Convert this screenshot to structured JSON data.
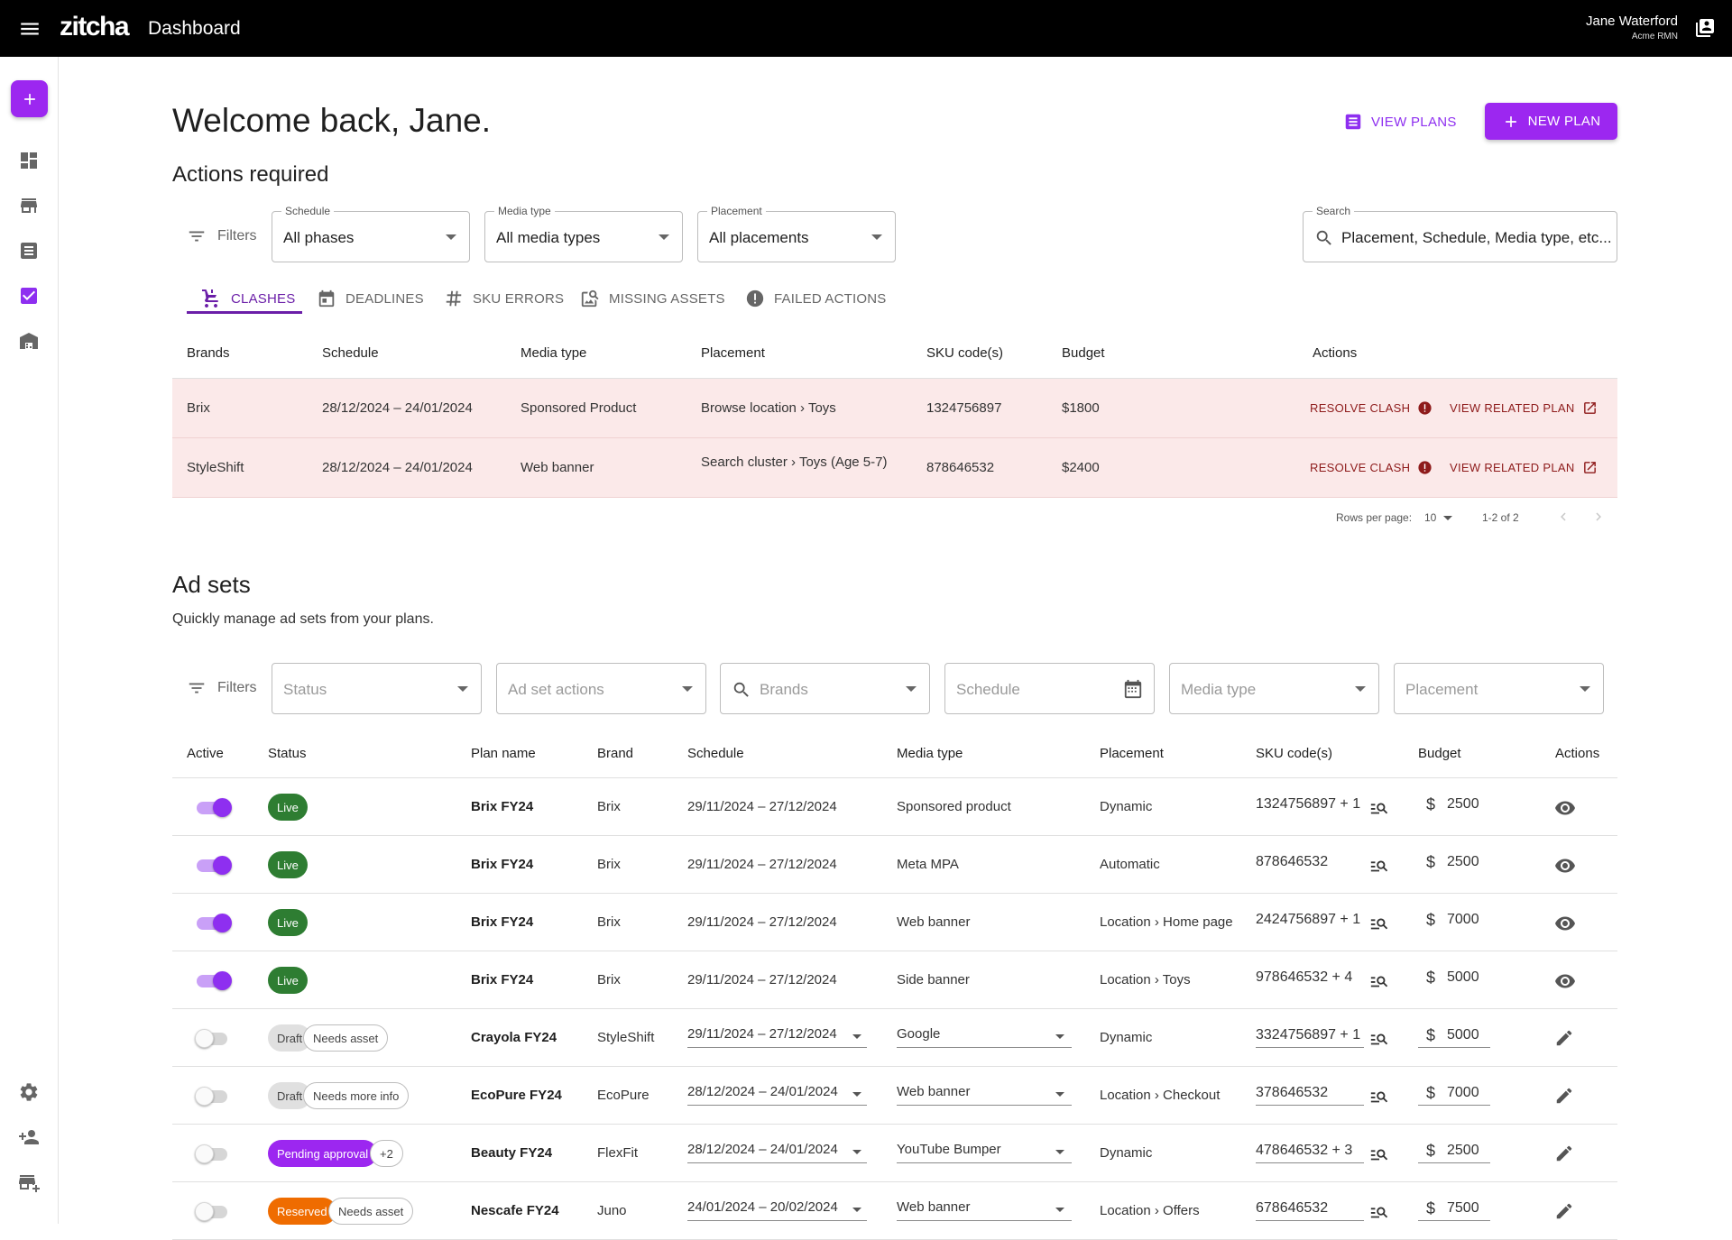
{
  "topbar": {
    "logo": "zitcha",
    "title": "Dashboard",
    "user_name": "Jane Waterford",
    "user_org": "Acme RMN"
  },
  "welcome": "Welcome back, Jane.",
  "header_actions": {
    "view_plans": "VIEW PLANS",
    "new_plan": "NEW PLAN"
  },
  "actions_required": {
    "title": "Actions required",
    "filters_label": "Filters",
    "schedule": {
      "label": "Schedule",
      "value": "All phases"
    },
    "media_type": {
      "label": "Media type",
      "value": "All media types"
    },
    "placement": {
      "label": "Placement",
      "value": "All placements"
    },
    "search": {
      "label": "Search",
      "placeholder": "Placement, Schedule, Media type, etc..."
    },
    "tabs": [
      "CLASHES",
      "DEADLINES",
      "SKU ERRORS",
      "MISSING ASSETS",
      "FAILED ACTIONS"
    ],
    "columns": [
      "Brands",
      "Schedule",
      "Media type",
      "Placement",
      "SKU code(s)",
      "Budget",
      "Actions"
    ],
    "rows": [
      {
        "brand": "Brix",
        "schedule": "28/12/2024 – 24/01/2024",
        "media_type": "Sponsored Product",
        "placement_a": "Browse location",
        "placement_b": "Toys",
        "sku": "1324756897",
        "budget": "$1800"
      },
      {
        "brand": "StyleShift",
        "schedule": "28/12/2024 – 24/01/2024",
        "media_type": "Web banner",
        "placement_a": "Search cluster",
        "placement_b": "Toys (Age 5-7)",
        "sku": "878646532",
        "budget": "$2400"
      }
    ],
    "resolve_label": "RESOLVE CLASH",
    "related_label": "VIEW RELATED PLAN",
    "rows_per_page_label": "Rows per page:",
    "rows_per_page": "10",
    "range": "1-2 of 2"
  },
  "ad_sets": {
    "title": "Ad sets",
    "subtitle": "Quickly manage ad sets from your plans.",
    "filters_label": "Filters",
    "filter_placeholders": {
      "status": "Status",
      "ad_set_actions": "Ad set actions",
      "brands": "Brands",
      "schedule": "Schedule",
      "media_type": "Media type",
      "placement": "Placement"
    },
    "columns": [
      "Active",
      "Status",
      "Plan name",
      "Brand",
      "Schedule",
      "Media type",
      "Placement",
      "SKU code(s)",
      "Budget",
      "Actions"
    ],
    "rows": [
      {
        "active": true,
        "status": "Live",
        "extra": "",
        "plan": "Brix FY24",
        "brand": "Brix",
        "schedule": "29/11/2024 – 27/12/2024",
        "media_type": "Sponsored product",
        "placement": "Dynamic",
        "sku": "1324756897 + 1",
        "currency": "$",
        "budget": "2500",
        "editable": false
      },
      {
        "active": true,
        "status": "Live",
        "extra": "",
        "plan": "Brix FY24",
        "brand": "Brix",
        "schedule": "29/11/2024 – 27/12/2024",
        "media_type": "Meta MPA",
        "placement": "Automatic",
        "sku": "878646532",
        "currency": "$",
        "budget": "2500",
        "editable": false
      },
      {
        "active": true,
        "status": "Live",
        "extra": "",
        "plan": "Brix FY24",
        "brand": "Brix",
        "schedule": "29/11/2024 – 27/12/2024",
        "media_type": "Web banner",
        "placement": "Location › Home page",
        "sku": "2424756897 + 1",
        "currency": "$",
        "budget": "7000",
        "editable": false
      },
      {
        "active": true,
        "status": "Live",
        "extra": "",
        "plan": "Brix FY24",
        "brand": "Brix",
        "schedule": "29/11/2024 – 27/12/2024",
        "media_type": "Side banner",
        "placement": "Location › Toys",
        "sku": "978646532 + 4",
        "currency": "$",
        "budget": "5000",
        "editable": false
      },
      {
        "active": false,
        "status": "Draft",
        "extra": "Needs asset",
        "plan": "Crayola FY24",
        "brand": "StyleShift",
        "schedule": "29/11/2024 – 27/12/2024",
        "media_type": "Google",
        "placement": "Dynamic",
        "sku": "3324756897 + 1",
        "currency": "$",
        "budget": "5000",
        "editable": true
      },
      {
        "active": false,
        "status": "Draft",
        "extra": "Needs more info",
        "plan": "EcoPure FY24",
        "brand": "EcoPure",
        "schedule": "28/12/2024 – 24/01/2024",
        "media_type": "Web banner",
        "placement": "Location › Checkout",
        "sku": "378646532",
        "currency": "$",
        "budget": "7000",
        "editable": true
      },
      {
        "active": false,
        "status": "Pending approval",
        "extra": "+2",
        "plan": "Beauty FY24",
        "brand": "FlexFit",
        "schedule": "28/12/2024 – 24/01/2024",
        "media_type": "YouTube Bumper",
        "placement": "Dynamic",
        "sku": "478646532 + 3",
        "currency": "$",
        "budget": "2500",
        "editable": true
      },
      {
        "active": false,
        "status": "Reserved",
        "extra": "Needs asset",
        "plan": "Nescafe FY24",
        "brand": "Juno",
        "schedule": "24/01/2024 – 20/02/2024",
        "media_type": "Web banner",
        "placement": "Location › Offers",
        "sku": "678646532",
        "currency": "$",
        "budget": "7500",
        "editable": true
      }
    ]
  },
  "colors": {
    "accent": "#9c27f0",
    "live": "#2e7d32",
    "reserved": "#ef6c00",
    "clash_row": "#fbe9e9"
  }
}
